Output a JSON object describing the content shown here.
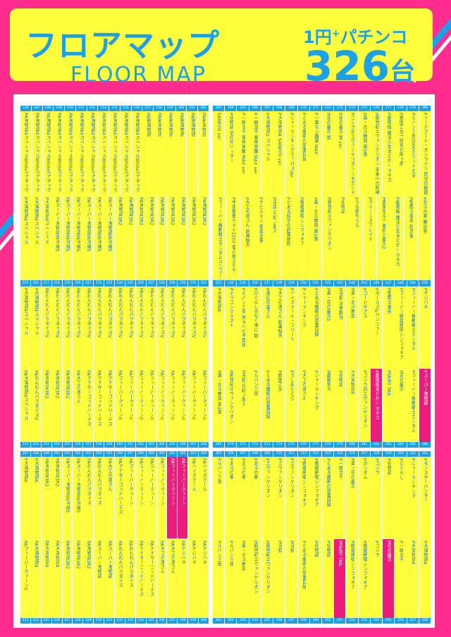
{
  "header": {
    "title_jp": "フロアマップ",
    "title_en": "FLOOR MAP",
    "subtitle": "1円",
    "subtitle_plus": "+",
    "subtitle_tail": "パチンコ",
    "count": "326",
    "count_unit": "台"
  },
  "colors": {
    "pink": "#ff2d8e",
    "yellow": "#ffff3c",
    "blue": "#1aa1e8",
    "text_blue": "#1a6fb4",
    "magenta": "#ec1c7c"
  },
  "groups": [
    {
      "id": "g1",
      "numbers": [
        "146",
        "147",
        "148",
        "149",
        "150",
        "151",
        "152",
        "153",
        "154",
        "155",
        "156",
        "157",
        "158",
        "159",
        "160",
        "161",
        "162"
      ],
      "names": [
        "PA海物語4スペシャルWhiteTアタック",
        "PA海物語4スペシャルWhiteTアタック",
        "PA海物語4スペシャルWhiteTアタック",
        "PA海物語4スペシャルWhiteTアタック",
        "PA海物語4スペシャルWhiteTアタック",
        "PA海物語4スペシャルWhiteTアタック",
        "PA海物語4スペシャルWhiteTアタック",
        "PA海物語4スペシャルWhiteTアタック",
        "PA海物語4スペシャルWhiteTアタック",
        "PA海物語4スペシャルWhiteTアタック",
        "PA海物語4スペシャルWhiteTアタック",
        "PA新海物語",
        "PA新海物語",
        "PA新海物語",
        "PA新海物語",
        "PA新海物語",
        "PA新海物語"
      ],
      "pink": []
    },
    {
      "id": "g2",
      "numbers": [
        "163",
        "164",
        "165",
        "166",
        "167",
        "168",
        "169",
        "170",
        "171",
        "172",
        "173",
        "174",
        "175",
        "176",
        "177",
        "178",
        "179",
        "180"
      ],
      "names": [
        "SANKYO ver",
        "P化物語 消灯中バッター",
        "P一騎当千 軍神覚醒 MAX ver",
        "P一騎当千 軍神覚醒 MAX ver",
        "P大海物語3 スペシャル",
        "P大海物語4 SANKYO ver",
        "PシャーマンキングでっけぇVer",
        "Pとある魔術の禁書目録",
        "P一撃ちシ轟撃 MAX",
        "P花の慶次 蛍",
        "P化の慶次 蛍 ver",
        "Pゴジラ対エヴァンゲリオン ～セカンドインパクトG～",
        "P真・北斗無双 第3章",
        "P新世紀エヴァンゲリオン 未来への咆哮",
        "P劇場版 魔法少女まどか☆マギカ",
        "P戦国乙女7 終焉の関ヶ原",
        "Pルパン三世2000カラットの涙",
        "Pソードアート・オンライン 閃光の軌跡"
      ],
      "pink": []
    },
    {
      "id": "g3",
      "numbers": [
        "197",
        "198",
        "199",
        "200",
        "201",
        "202",
        "203",
        "204",
        "205",
        "206",
        "207",
        "208",
        "209",
        "210",
        "211",
        "212",
        "213",
        "214"
      ],
      "names": [
        "P大海物語4スペシャル",
        "P大海物語4スペシャル",
        "P大海物語4スペシャル",
        "PAスーパー海物語IN沖縄5",
        "PAスーパー海物語IN沖縄5",
        "PAスーパー海物語IN沖縄5",
        "PAスーパー海物語IN沖縄5",
        "PAスーパー海物語IN沖縄5",
        "PAスーパー海物語IN沖縄5",
        "PA海物語3R2",
        "PA海物語3R2",
        "PA海物語3R2",
        "PA海物語3R2",
        "PA海物語3R2",
        "PA海物語3R2",
        "PA海物語3R2",
        "PA海物語3R2",
        "PA海物語3R2"
      ],
      "pink": []
    },
    {
      "id": "g4",
      "numbers": [
        "181",
        "182",
        "183",
        "184",
        "185",
        "186",
        "187",
        "188",
        "189",
        "190",
        "191",
        "192",
        "193",
        "194",
        "195",
        "196"
      ],
      "names": [
        "Pフィーバー機動戦士ガンダムユニコーン",
        "P宇宙戦艦ヤマト2202 愛の戦士たち",
        "P大工の源さん 超韋駄天",
        "Pデビルマン 疾風迅雷",
        "P牙狼 月虹ノ旅人",
        "Pとある科学の超電磁砲",
        "P戦姫絶唱シンフォギア",
        "P真・北斗無双 第3章",
        "P新世紀エヴァンゲリオン",
        "P化物語",
        "Pうる星やつら",
        "Pクイーンズブレイド",
        "P義風堂々!! 兼続と慶次2",
        "P劇場版 魔法少女まどか☆マギカ",
        "P聖闘士星矢 超流星",
        "P北斗の拳 暴凶星"
      ],
      "pink": []
    },
    {
      "id": "g5",
      "numbers": [
        "215",
        "216",
        "217",
        "218",
        "219",
        "220",
        "221",
        "222",
        "223",
        "224",
        "225",
        "226",
        "227",
        "228",
        "229",
        "230",
        "231",
        "232"
      ],
      "names": [
        "P大海物語4スペシャル",
        "P大海物語4スペシャル",
        "PAわんわんパラダイスV",
        "PAわんわんパラダイスV",
        "PAわんわんパラダイスV",
        "PAわんわんパラダイスV",
        "PAわんわんパラダイスV",
        "PAわんわんパラダイスV",
        "PAわんわんパラダイスV",
        "PAわんわんパラダイスV",
        "PAわんわんパラダイスV",
        "PAわんわんパラダイスV",
        "PAわんわんパラダイスV",
        "PAわんわんパラダイスV",
        "PAわんわんパラダイスV",
        "PAわんわんパラダイスV",
        "PAわんわんパラダイスV",
        "PAわんわんパラダイスV"
      ],
      "pink": []
    },
    {
      "id": "g6",
      "numbers": [
        "233",
        "234",
        "235",
        "236",
        "237",
        "238",
        "239",
        "240",
        "241",
        "242",
        "243",
        "244",
        "245",
        "246",
        "247",
        "248",
        "249",
        "250"
      ],
      "names": [
        "P大海物語4",
        "Pドラゴンクエスト",
        "Pルパン三世 神々への予告状",
        "Pひぐらしのなく頃に 廻",
        "P遠山の金さん",
        "P大工の源さん 超韋駄天",
        "Pハイスクール・フリート",
        "Pシャーマンキング",
        "Pとある魔術の禁書目録",
        "P真・花の慶次3",
        "P牙狼 冴島鋼牙",
        "P真・北斗無双",
        "Pコードギアス",
        "Pガールズ&パンツァー",
        "P聖闘士星矢",
        "Pフィーバー戦姫絶唱シンフォギア",
        "Pフィーバー機動戦士ガンダム",
        "Pデジハネ"
      ],
      "pink": []
    },
    {
      "id": "g7",
      "numbers": [
        "251",
        "252",
        "253",
        "254",
        "255",
        "256",
        "257",
        "258",
        "259",
        "260",
        "261",
        "262",
        "263",
        "264",
        "265",
        "266",
        "267",
        "268"
      ],
      "names": [
        "PA大海物語4スペシャル",
        "PAわんわんパラダイスV",
        "PA海物語3R2",
        "PA海物語3R2",
        "PA海物語3R2",
        "PA大工の源さん",
        "PAアナザーゴッドハーデス",
        "PAアナザーゴッドハーデス",
        "PAアナザーゴッドハーデス",
        "PAフィーバークィーンII",
        "PAフィーバークィーンII",
        "PAフィーバークィーンII",
        "PAフィーバークィーンII",
        "PAフィーバークィーンII",
        "PAフィーバークィーンII",
        "PAフィーバークィーンII",
        "PAフィーバークィーンII",
        "PAフィーバークィーンII"
      ],
      "pink": []
    },
    {
      "id": "g8",
      "numbers": [
        "269",
        "270",
        "271",
        "272",
        "273",
        "274",
        "275",
        "276",
        "277",
        "278",
        "279",
        "280",
        "281",
        "282",
        "283",
        "284",
        "285",
        "286"
      ],
      "names": [
        "P真・北斗無双 第3章",
        "P新世紀エヴァンゲリオン",
        "P牙狼 月虹ノ旅人",
        "Pルパン三世",
        "Pとある魔術の禁書目録",
        "P戦国乙女",
        "Pうしおととら",
        "P大工の源さん",
        "Pシャーマンキング",
        "P義風堂々",
        "P化物語",
        "P大海物語4",
        "Pゴジラ対エヴァンゲリオン",
        "P劇場版まどか☆マギカ",
        "PFAIRY TAIL",
        "P花の慶次",
        "Pフィーバー機動戦士ガンダム",
        "Pスーパー海物語"
      ],
      "pink": [
        13,
        17
      ]
    },
    {
      "id": "g9",
      "numbers": [
        "287",
        "288",
        "289",
        "290",
        "291",
        "292",
        "293",
        "294",
        "295",
        "296",
        "297",
        "298",
        "299",
        "300",
        "301",
        "302",
        "303",
        "304"
      ],
      "names": [
        "P大海物語4",
        "P大海物語4",
        "PA海物語3R2",
        "PA海物語3R2",
        "PAスーパー海物語IN沖縄5",
        "PAスーパー海物語IN沖縄5",
        "PAわんわんパラダイス",
        "PAわんわんパラダイス",
        "PA大工の源さん",
        "PAアナザーゴッドハーデス",
        "PAフィーバークィーン",
        "PAフィーバークィーン",
        "PAフィーバークィーン",
        "PAフィーバークィーン",
        "PAフィーバークィーン",
        "PAフィーバークィーン",
        "PAハイスクール",
        "PAハイスクール"
      ],
      "pink": [
        14,
        15
      ]
    },
    {
      "id": "g10",
      "numbers": [
        "305",
        "306",
        "307",
        "308",
        "309",
        "310",
        "311",
        "312",
        "313",
        "314",
        "315",
        "316",
        "317",
        "318",
        "319",
        "320",
        "321",
        "322"
      ],
      "names": [
        "Pルパン三世",
        "P北斗の拳",
        "P北斗の拳",
        "P北斗の拳",
        "Pエヴァンゲリオン",
        "Pエヴァンゲリオン",
        "Pエヴァンゲリオン",
        "P戦姫絶唱シンフォギア",
        "P戦姫絶唱シンフォギア",
        "Pとある魔術の禁書目録",
        "P一騎当千",
        "P真・花の慶次",
        "Pガンダム",
        "Pゴジラ",
        "P化物語",
        "Pひぐらし",
        "Pシャーマンキング",
        "Pモンスターハンター"
      ],
      "pink": []
    },
    {
      "id": "g11",
      "numbers": [
        "323",
        "324",
        "325",
        "326",
        "327",
        "328",
        "329",
        "330",
        "331",
        "332",
        "333",
        "334",
        "335",
        "336",
        "337",
        "338",
        "339",
        "340"
      ],
      "names": [
        "PAフィーバークィーンII",
        "PA大海物語4",
        "PA大海物語4",
        "PA大海物語4",
        "PA海物語3R2",
        "PA海物語3R2",
        "PA海物語3R2",
        "PAスーパー海物語",
        "PAスーパー海物語",
        "PAわんわんパラダイス",
        "PAわんわんパラダイス",
        "PAアナザーゴッドハーデス",
        "PAアナザーゴッドハーデス",
        "PA大工の源さん",
        "PA大工の源さん",
        "PAデジハネ",
        "PAデジハネ",
        "PAデジハネ"
      ],
      "pink": []
    },
    {
      "id": "g12",
      "numbers": [
        "341",
        "342",
        "343",
        "344",
        "345",
        "346",
        "347",
        "348",
        "349",
        "350",
        "351",
        "352",
        "353",
        "354",
        "355",
        "356",
        "357",
        "358"
      ],
      "names": [
        "Pルパン三世",
        "Pルパン三世",
        "P真・北斗無双",
        "P新世紀エヴァンゲリオン",
        "P新世紀エヴァンゲリオン",
        "P牙狼",
        "P牙狼",
        "Pとある魔術の禁書目録",
        "P化物語",
        "P化物語",
        "PFAIRY TAIL",
        "P戦姫絶唱シンフォギア",
        "P戦姫絶唱シンフォギア",
        "Pゴジラ",
        "P花の慶次",
        "P一騎当千",
        "P大海物語4",
        "P大海物語4"
      ],
      "pink": [
        10,
        14
      ]
    }
  ]
}
